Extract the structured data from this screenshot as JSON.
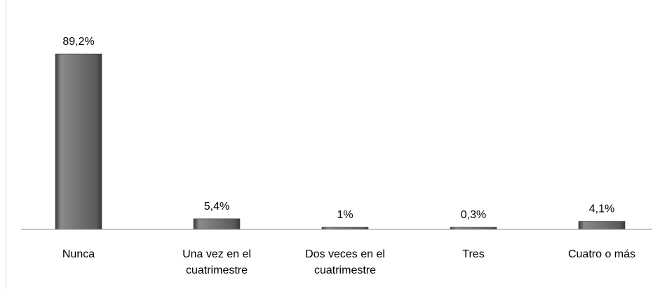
{
  "chart_data": {
    "type": "bar",
    "categories": [
      [
        "Nunca"
      ],
      [
        "Una vez en el",
        "cuatrimestre"
      ],
      [
        "Dos veces en el",
        "cuatrimestre"
      ],
      [
        "Tres"
      ],
      [
        "Cuatro o más"
      ]
    ],
    "values": [
      89.2,
      5.4,
      1,
      0.3,
      4.1
    ],
    "data_labels": [
      "89,2%",
      "5,4%",
      "1%",
      "0,3%",
      "4,1%"
    ],
    "title": "",
    "xlabel": "",
    "ylabel": "",
    "ylim": [
      0,
      100
    ],
    "grid": false,
    "legend": "none",
    "colors": {
      "bar": "#5a5a5a",
      "bar_highlight": "#8a8a8a",
      "bar_shadow": "#3a3a3a",
      "axis": "#8c8c8c",
      "text": "#000000",
      "frame": "#d9d9d9"
    }
  }
}
